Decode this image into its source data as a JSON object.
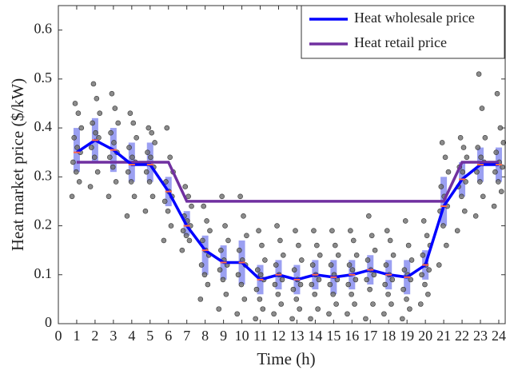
{
  "chart_data": {
    "type": "line",
    "xlabel": "Time (h)",
    "ylabel": "Heat market price ($/kW)",
    "x": [
      1,
      2,
      3,
      4,
      5,
      6,
      7,
      8,
      9,
      10,
      11,
      12,
      13,
      14,
      15,
      16,
      17,
      18,
      19,
      20,
      21,
      22,
      23,
      24
    ],
    "series": [
      {
        "name": "Heat wholesale price",
        "color": "#0000ff",
        "values": [
          0.35,
          0.375,
          0.355,
          0.325,
          0.325,
          0.27,
          0.2,
          0.15,
          0.125,
          0.125,
          0.09,
          0.1,
          0.09,
          0.1,
          0.095,
          0.1,
          0.11,
          0.1,
          0.095,
          0.12,
          0.24,
          0.295,
          0.325,
          0.325
        ]
      },
      {
        "name": "Heat retail price",
        "color": "#7030a0",
        "values": [
          0.33,
          0.33,
          0.33,
          0.33,
          0.33,
          0.33,
          0.25,
          0.25,
          0.25,
          0.25,
          0.25,
          0.25,
          0.25,
          0.25,
          0.25,
          0.25,
          0.25,
          0.25,
          0.25,
          0.25,
          0.25,
          0.33,
          0.33,
          0.33
        ]
      }
    ],
    "boxes": {
      "color": "#8a8ff0",
      "low": [
        0.31,
        0.33,
        0.31,
        0.29,
        0.29,
        0.24,
        0.18,
        0.1,
        0.09,
        0.08,
        0.06,
        0.07,
        0.06,
        0.07,
        0.06,
        0.07,
        0.08,
        0.07,
        0.06,
        0.09,
        0.2,
        0.26,
        0.29,
        0.29
      ],
      "high": [
        0.4,
        0.42,
        0.4,
        0.37,
        0.37,
        0.3,
        0.23,
        0.18,
        0.16,
        0.17,
        0.12,
        0.13,
        0.12,
        0.13,
        0.13,
        0.13,
        0.14,
        0.13,
        0.13,
        0.15,
        0.3,
        0.33,
        0.36,
        0.36
      ]
    },
    "points": {
      "color": "#6e6e6e",
      "values": [
        [
          0.26,
          0.29,
          0.31,
          0.33,
          0.35,
          0.36,
          0.38,
          0.4,
          0.43,
          0.45
        ],
        [
          0.28,
          0.31,
          0.34,
          0.36,
          0.38,
          0.39,
          0.41,
          0.43,
          0.46,
          0.49
        ],
        [
          0.26,
          0.29,
          0.32,
          0.34,
          0.35,
          0.37,
          0.39,
          0.41,
          0.44,
          0.47
        ],
        [
          0.22,
          0.26,
          0.29,
          0.31,
          0.33,
          0.34,
          0.36,
          0.38,
          0.41,
          0.43
        ],
        [
          0.23,
          0.26,
          0.29,
          0.31,
          0.32,
          0.34,
          0.35,
          0.37,
          0.39,
          0.4
        ],
        [
          0.17,
          0.2,
          0.23,
          0.25,
          0.26,
          0.27,
          0.29,
          0.31,
          0.34,
          0.4
        ],
        [
          0.15,
          0.17,
          0.18,
          0.19,
          0.2,
          0.21,
          0.22,
          0.24,
          0.26,
          0.28
        ],
        [
          0.05,
          0.08,
          0.1,
          0.12,
          0.14,
          0.15,
          0.17,
          0.19,
          0.21,
          0.24
        ],
        [
          0.03,
          0.06,
          0.09,
          0.11,
          0.12,
          0.13,
          0.15,
          0.17,
          0.2,
          0.26
        ],
        [
          0.02,
          0.05,
          0.08,
          0.1,
          0.12,
          0.13,
          0.15,
          0.18,
          0.22,
          0.26
        ],
        [
          0.01,
          0.03,
          0.05,
          0.07,
          0.09,
          0.1,
          0.11,
          0.13,
          0.16,
          0.19
        ],
        [
          0.02,
          0.04,
          0.06,
          0.08,
          0.09,
          0.1,
          0.12,
          0.14,
          0.17,
          0.2
        ],
        [
          0.01,
          0.03,
          0.05,
          0.07,
          0.08,
          0.09,
          0.11,
          0.13,
          0.16,
          0.19
        ],
        [
          0.01,
          0.03,
          0.06,
          0.08,
          0.09,
          0.1,
          0.12,
          0.14,
          0.16,
          0.19
        ],
        [
          0.02,
          0.04,
          0.06,
          0.08,
          0.09,
          0.1,
          0.12,
          0.14,
          0.16,
          0.19
        ],
        [
          0.02,
          0.04,
          0.06,
          0.08,
          0.09,
          0.11,
          0.12,
          0.14,
          0.17,
          0.19
        ],
        [
          0.01,
          0.04,
          0.07,
          0.09,
          0.1,
          0.11,
          0.13,
          0.15,
          0.18,
          0.22
        ],
        [
          0.02,
          0.04,
          0.06,
          0.08,
          0.09,
          0.1,
          0.12,
          0.14,
          0.17,
          0.19
        ],
        [
          0.01,
          0.03,
          0.05,
          0.07,
          0.09,
          0.1,
          0.11,
          0.13,
          0.16,
          0.21
        ],
        [
          0.04,
          0.06,
          0.08,
          0.1,
          0.11,
          0.12,
          0.14,
          0.16,
          0.18,
          0.21
        ],
        [
          0.12,
          0.16,
          0.2,
          0.23,
          0.24,
          0.26,
          0.28,
          0.31,
          0.34,
          0.37
        ],
        [
          0.19,
          0.23,
          0.26,
          0.28,
          0.29,
          0.31,
          0.32,
          0.34,
          0.36,
          0.38
        ],
        [
          0.22,
          0.26,
          0.29,
          0.31,
          0.33,
          0.34,
          0.36,
          0.38,
          0.44,
          0.51
        ],
        [
          0.24,
          0.27,
          0.29,
          0.31,
          0.32,
          0.33,
          0.35,
          0.37,
          0.4,
          0.47
        ]
      ]
    },
    "xlim": [
      0,
      24.35
    ],
    "ylim": [
      0,
      0.65
    ],
    "xticks": [
      0,
      1,
      2,
      3,
      4,
      5,
      6,
      7,
      8,
      9,
      10,
      11,
      12,
      13,
      14,
      15,
      16,
      17,
      18,
      19,
      20,
      21,
      22,
      23,
      24
    ],
    "yticks": [
      0,
      0.1,
      0.2,
      0.3,
      0.4,
      0.5,
      0.6
    ],
    "legend": "upper right"
  }
}
